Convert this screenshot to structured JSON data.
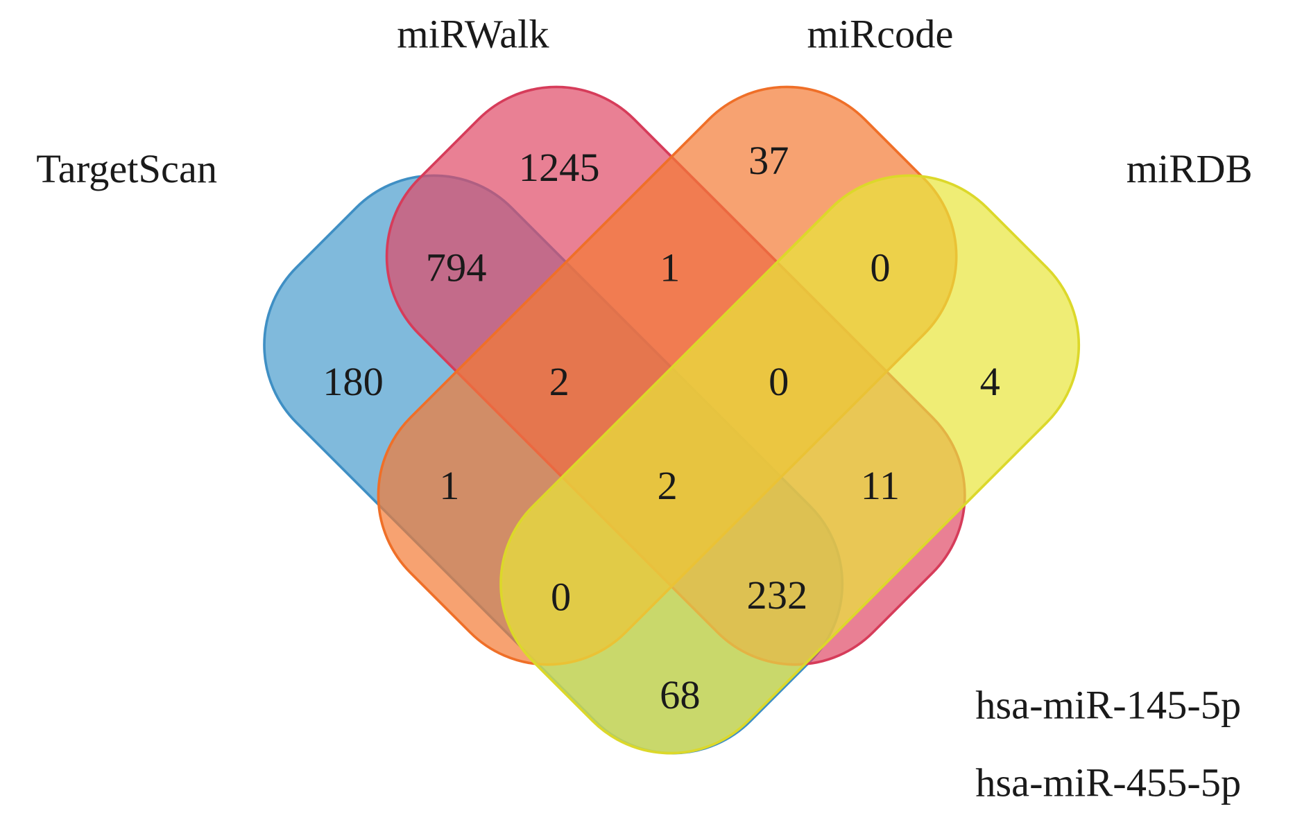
{
  "sets": [
    {
      "label": "TargetScan"
    },
    {
      "label": "miRWalk"
    },
    {
      "label": "miRcode"
    },
    {
      "label": "miRDB"
    }
  ],
  "regions": [
    1245,
    37,
    794,
    1,
    0,
    180,
    2,
    0,
    4,
    1,
    2,
    11,
    0,
    232,
    68
  ],
  "legend": [
    "hsa-miR-145-5p",
    "hsa-miR-455-5p"
  ]
}
